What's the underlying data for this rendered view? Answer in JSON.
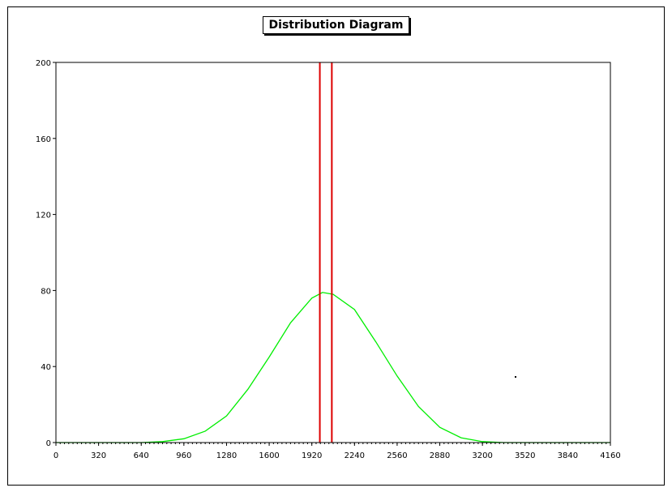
{
  "chart_data": {
    "type": "line",
    "title": "Distribution Diagram",
    "xlabel": "",
    "ylabel": "",
    "xlim": [
      0,
      4160
    ],
    "ylim": [
      0,
      200
    ],
    "x_ticks": [
      0,
      320,
      640,
      960,
      1280,
      1600,
      1920,
      2240,
      2560,
      2880,
      3200,
      3520,
      3840,
      4160
    ],
    "y_ticks": [
      0,
      40,
      80,
      120,
      160,
      200
    ],
    "grid": false,
    "series": [
      {
        "color": "#00ee00",
        "x": [
          0,
          640,
          800,
          960,
          1120,
          1280,
          1440,
          1600,
          1760,
          1920,
          2000,
          2080,
          2240,
          2400,
          2560,
          2720,
          2880,
          3040,
          3200,
          3360,
          4160
        ],
        "y": [
          0,
          0,
          0.5,
          2,
          6,
          14,
          28,
          45,
          63,
          76,
          79,
          78,
          70,
          53,
          35,
          19,
          8,
          2.5,
          0.5,
          0,
          0
        ]
      }
    ],
    "vertical_lines": [
      {
        "x": 1980,
        "color": "#dd0000"
      },
      {
        "x": 2070,
        "color": "#dd0000"
      }
    ],
    "colors": {
      "axis": "#000000",
      "curve": "#00ee00",
      "marker_lines": "#dd0000"
    }
  }
}
